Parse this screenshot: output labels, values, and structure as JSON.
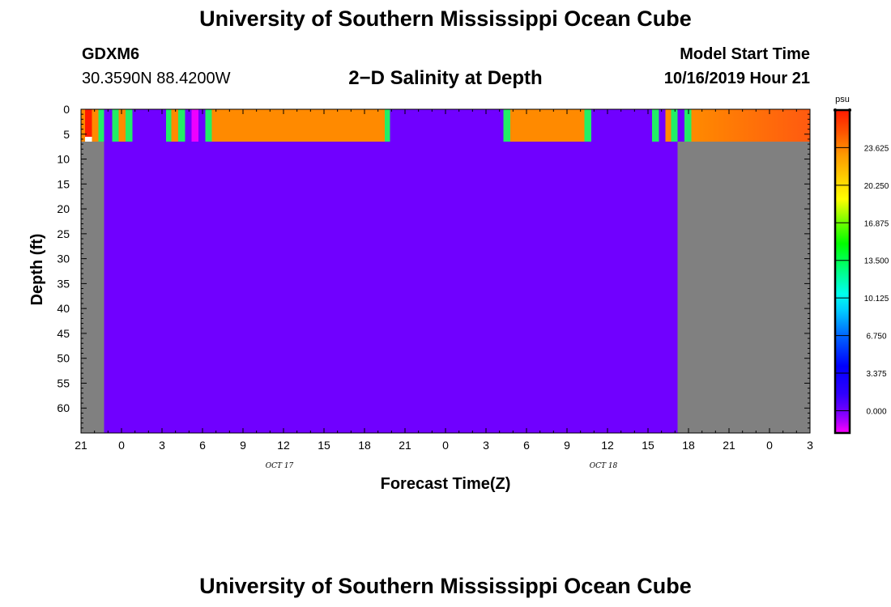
{
  "header": {
    "title": "University of Southern Mississippi Ocean Cube",
    "station": "GDXM6",
    "coords": "30.3590N 88.4200W",
    "plot_title": "2−D Salinity at Depth",
    "model_start_label": "Model Start Time",
    "model_start_value": "10/16/2019 Hour 21"
  },
  "footer": {
    "title": "University of Southern Mississippi Ocean Cube"
  },
  "colors": {
    "nodata": "#808080",
    "fresh": "#7000ff",
    "orange": "#ff8a00",
    "orange_red": "#ff5a10",
    "red": "#ff1a00",
    "green": "#22ee66",
    "magenta": "#ee00ff"
  },
  "chart_data": {
    "type": "heatmap",
    "title": "2−D Salinity at Depth",
    "xlabel": "Forecast Time(Z)",
    "ylabel": "Depth (ft)",
    "x_unit": "hours since 10/16 21Z",
    "xlim": [
      0,
      54
    ],
    "ylim": [
      0,
      65
    ],
    "x_ticks": [
      {
        "h": 0,
        "label": "21"
      },
      {
        "h": 3,
        "label": "0"
      },
      {
        "h": 6,
        "label": "3"
      },
      {
        "h": 9,
        "label": "6"
      },
      {
        "h": 12,
        "label": "9"
      },
      {
        "h": 15,
        "label": "12"
      },
      {
        "h": 18,
        "label": "15"
      },
      {
        "h": 21,
        "label": "18"
      },
      {
        "h": 24,
        "label": "21"
      },
      {
        "h": 27,
        "label": "0"
      },
      {
        "h": 30,
        "label": "3"
      },
      {
        "h": 33,
        "label": "6"
      },
      {
        "h": 36,
        "label": "9"
      },
      {
        "h": 39,
        "label": "12"
      },
      {
        "h": 42,
        "label": "15"
      },
      {
        "h": 45,
        "label": "18"
      },
      {
        "h": 48,
        "label": "21"
      },
      {
        "h": 51,
        "label": "0"
      },
      {
        "h": 54,
        "label": "3"
      }
    ],
    "date_labels": [
      {
        "h": 15,
        "label": "OCT 17"
      },
      {
        "h": 39,
        "label": "OCT 18"
      }
    ],
    "y_ticks": [
      0,
      5,
      10,
      15,
      20,
      25,
      30,
      35,
      40,
      45,
      50,
      55,
      60
    ],
    "colorbar": {
      "unit": "psu",
      "range": [
        -2,
        27
      ],
      "ticks": [
        0.0,
        3.375,
        6.75,
        10.125,
        13.5,
        16.875,
        20.25,
        23.625
      ],
      "tick_labels": [
        "0.000",
        "3.375",
        "6.750",
        "10.125",
        "13.500",
        "16.875",
        "20.250",
        "23.625"
      ]
    },
    "cells": [
      {
        "x0": 0,
        "x1": 1.7,
        "d0": 6.5,
        "d1": 65,
        "psu": null
      },
      {
        "x0": 1.7,
        "x1": 44.2,
        "d0": 6.5,
        "d1": 65,
        "psu": 0.0
      },
      {
        "x0": 44.2,
        "x1": 54,
        "d0": 6.5,
        "d1": 65,
        "psu": null
      },
      {
        "x0": 0,
        "x1": 0.3,
        "d0": 0,
        "d1": 6.5,
        "psu": 23.5
      },
      {
        "x0": 0.3,
        "x1": 0.8,
        "d0": 0,
        "d1": 5.5,
        "psu": 26.5
      },
      {
        "x0": 0.3,
        "x1": 0.8,
        "d0": 5.5,
        "d1": 6.5,
        "psu": null
      },
      {
        "x0": 0.8,
        "x1": 1.3,
        "d0": 0,
        "d1": 6.5,
        "psu": 23.5
      },
      {
        "x0": 1.3,
        "x1": 1.7,
        "d0": 0,
        "d1": 6.5,
        "psu": 12.0
      },
      {
        "x0": 1.7,
        "x1": 2.3,
        "d0": 0,
        "d1": 6.5,
        "psu": 0.0
      },
      {
        "x0": 2.3,
        "x1": 2.8,
        "d0": 0,
        "d1": 6.5,
        "psu": 12.0
      },
      {
        "x0": 2.8,
        "x1": 3.3,
        "d0": 0,
        "d1": 6.5,
        "psu": 23.5
      },
      {
        "x0": 3.3,
        "x1": 3.8,
        "d0": 0,
        "d1": 6.5,
        "psu": 11.5
      },
      {
        "x0": 3.8,
        "x1": 6.3,
        "d0": 0,
        "d1": 6.5,
        "psu": 0.0
      },
      {
        "x0": 6.3,
        "x1": 6.7,
        "d0": 0,
        "d1": 6.5,
        "psu": 12.0
      },
      {
        "x0": 6.7,
        "x1": 7.2,
        "d0": 0,
        "d1": 6.5,
        "psu": 23.5
      },
      {
        "x0": 7.2,
        "x1": 7.7,
        "d0": 0,
        "d1": 6.5,
        "psu": 12.0
      },
      {
        "x0": 7.7,
        "x1": 8.2,
        "d0": 0,
        "d1": 6.5,
        "psu": 0.0
      },
      {
        "x0": 8.2,
        "x1": 8.7,
        "d0": 0,
        "d1": 6.5,
        "psu": -1.5
      },
      {
        "x0": 8.7,
        "x1": 9.2,
        "d0": 0,
        "d1": 6.5,
        "psu": 0.0
      },
      {
        "x0": 9.2,
        "x1": 9.7,
        "d0": 0,
        "d1": 6.5,
        "psu": 12.0
      },
      {
        "x0": 9.7,
        "x1": 22.5,
        "d0": 0,
        "d1": 6.5,
        "psu": 23.5
      },
      {
        "x0": 22.5,
        "x1": 22.9,
        "d0": 0,
        "d1": 6.5,
        "psu": 12.0
      },
      {
        "x0": 22.9,
        "x1": 31.3,
        "d0": 0,
        "d1": 6.5,
        "psu": 0.0
      },
      {
        "x0": 31.3,
        "x1": 31.8,
        "d0": 0,
        "d1": 6.5,
        "psu": 12.0
      },
      {
        "x0": 31.8,
        "x1": 37.3,
        "d0": 0,
        "d1": 6.5,
        "psu": 23.5
      },
      {
        "x0": 37.3,
        "x1": 37.8,
        "d0": 0,
        "d1": 6.5,
        "psu": 12.0
      },
      {
        "x0": 37.8,
        "x1": 42.3,
        "d0": 0,
        "d1": 6.5,
        "psu": 0.0
      },
      {
        "x0": 42.3,
        "x1": 42.8,
        "d0": 0,
        "d1": 6.5,
        "psu": 12.0
      },
      {
        "x0": 42.8,
        "x1": 43.3,
        "d0": 0,
        "d1": 6.5,
        "psu": 0.0
      },
      {
        "x0": 43.3,
        "x1": 43.7,
        "d0": 0,
        "d1": 6.5,
        "psu": 24.0
      },
      {
        "x0": 43.7,
        "x1": 44.2,
        "d0": 0,
        "d1": 6.5,
        "psu": 12.0
      },
      {
        "x0": 44.2,
        "x1": 44.7,
        "d0": 0,
        "d1": 6.5,
        "psu": 0.0
      },
      {
        "x0": 44.7,
        "x1": 45.2,
        "d0": 0,
        "d1": 6.5,
        "psu": 12.0
      },
      {
        "x0": 45.2,
        "x1": 54,
        "d0": 0,
        "d1": 6.5,
        "psu": 25.0
      }
    ]
  }
}
